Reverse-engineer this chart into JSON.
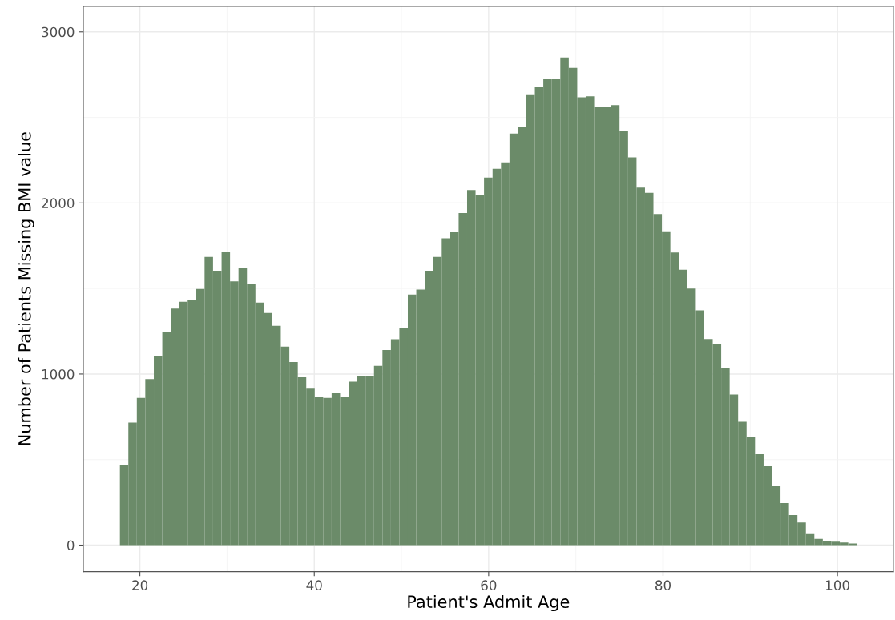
{
  "chart_data": {
    "type": "histogram",
    "xlabel": "Patient's Admit Age",
    "ylabel": "Number of Patients Missing BMI value",
    "color": "#6b8b69",
    "bins": [
      17.71,
      18.68,
      19.65,
      20.62,
      21.6,
      22.57,
      23.54,
      24.51,
      25.48,
      26.45,
      27.42,
      28.39,
      29.37,
      30.34,
      31.31,
      32.28,
      33.25,
      34.22,
      35.19,
      36.16,
      37.14,
      38.11,
      39.08,
      40.05,
      41.02,
      41.99,
      42.96,
      43.93,
      44.91,
      45.88,
      46.85,
      47.82,
      48.79,
      49.76,
      50.73,
      51.7,
      52.68,
      53.65,
      54.62,
      55.59,
      56.56,
      57.53,
      58.5,
      59.47,
      60.45,
      61.42,
      62.39,
      63.36,
      64.33,
      65.3,
      66.27,
      67.24,
      68.22,
      69.19,
      70.16,
      71.13,
      72.1,
      73.07,
      74.04,
      75.01,
      75.99,
      76.96,
      77.93,
      78.9,
      79.87,
      80.84,
      81.81,
      82.78,
      83.76,
      84.73,
      85.7,
      86.67,
      87.64,
      88.61,
      89.58,
      90.55,
      91.53,
      92.5,
      93.47,
      94.44,
      95.41,
      96.38,
      97.35,
      98.32,
      99.3,
      100.27,
      101.24,
      102.21
    ],
    "values": [
      467,
      716,
      861,
      970,
      1107,
      1243,
      1383,
      1422,
      1435,
      1497,
      1684,
      1604,
      1715,
      1542,
      1620,
      1527,
      1418,
      1357,
      1282,
      1160,
      1070,
      981,
      919,
      869,
      861,
      888,
      864,
      955,
      986,
      986,
      1048,
      1140,
      1203,
      1267,
      1465,
      1494,
      1604,
      1685,
      1793,
      1829,
      1941,
      2075,
      2048,
      2148,
      2199,
      2237,
      2405,
      2444,
      2635,
      2681,
      2727,
      2727,
      2850,
      2790,
      2617,
      2623,
      2559,
      2559,
      2572,
      2421,
      2266,
      2090,
      2059,
      1935,
      1830,
      1710,
      1610,
      1500,
      1372,
      1204,
      1176,
      1037,
      880,
      721,
      632,
      531,
      461,
      344,
      246,
      176,
      132,
      64,
      36,
      23,
      20,
      15,
      9
    ],
    "xlim": [
      13.5,
      106.4
    ],
    "ylim": [
      -155,
      3150
    ],
    "xticks": [
      20,
      40,
      60,
      80,
      100
    ],
    "yticks": [
      0,
      1000,
      2000,
      3000
    ],
    "grid": true
  }
}
